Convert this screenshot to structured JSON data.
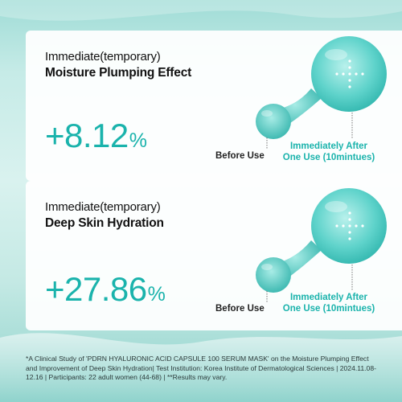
{
  "colors": {
    "accent": "#1ab3ac",
    "text_dark": "#111111",
    "background": "#c6ebe7"
  },
  "cards": [
    {
      "title_line1": "Immediate(temporary)",
      "title_line2": "Moisture Plumping Effect",
      "value": "+8.12",
      "unit": "%",
      "before_label": "Before Use",
      "after_label_line1": "Immediately After",
      "after_label_line2": "One Use (10mintues)"
    },
    {
      "title_line1": "Immediate(temporary)",
      "title_line2": "Deep Skin Hydration",
      "value": "+27.86",
      "unit": "%",
      "before_label": "Before Use",
      "after_label_line1": "Immediately After",
      "after_label_line2": "One Use (10mintues)"
    }
  ],
  "footnote": "*A Clinical Study of 'PDRN HYALURONIC ACID CAPSULE 100 SERUM MASK' on the Moisture Plumping Effect and Improvement of Deep Skin Hydration| Test Institution: Korea Institute of Dermatological Sciences | 2024.11.08-12.16 | Participants: 22 adult women (44-68) | **Results may vary."
}
